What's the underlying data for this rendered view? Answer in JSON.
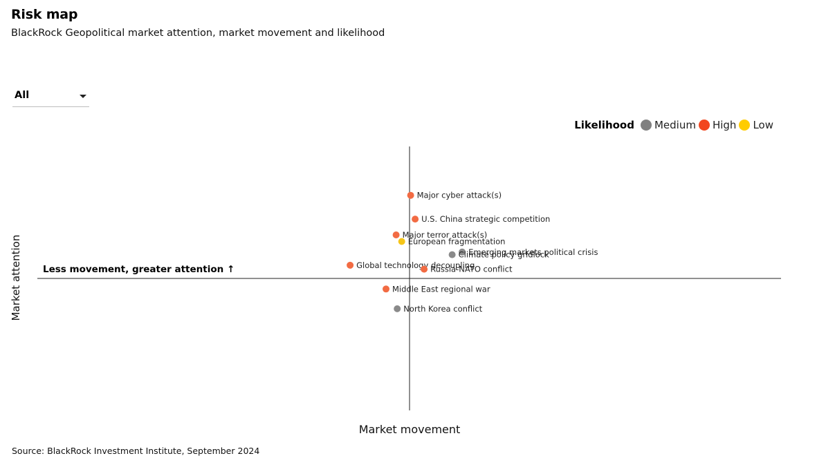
{
  "header": {
    "title": "Risk map",
    "subtitle": "BlackRock Geopolitical market attention, market movement and likelihood"
  },
  "filter": {
    "selected": "All"
  },
  "legend": {
    "title": "Likelihood",
    "items": [
      {
        "label": "Medium",
        "color": "#808080"
      },
      {
        "label": "High",
        "color": "#f2461f"
      },
      {
        "label": "Low",
        "color": "#ffcc00"
      }
    ]
  },
  "quadrant_note": "Less movement, greater attention ↑",
  "source": "Source: BlackRock Investment Institute, September 2024",
  "chart_data": {
    "type": "scatter",
    "xlabel": "Market movement",
    "ylabel": "Market attention",
    "xlim": [
      -3,
      3
    ],
    "ylim": [
      -1.0,
      1.0
    ],
    "point_color": {
      "High": "#f26b43",
      "Medium": "#8a8a8a",
      "Low": "#f5c518"
    },
    "points": [
      {
        "name": "Major cyber attack(s)",
        "x": 0.01,
        "y": 0.63,
        "likelihood": "High"
      },
      {
        "name": "U.S. China strategic competition",
        "x": 0.05,
        "y": 0.45,
        "likelihood": "High"
      },
      {
        "name": "Major terror attack(s)",
        "x": -0.12,
        "y": 0.33,
        "likelihood": "High"
      },
      {
        "name": "European fragmentation",
        "x": -0.07,
        "y": 0.28,
        "likelihood": "Low"
      },
      {
        "name": "Emerging markets political crisis",
        "x": 0.47,
        "y": 0.2,
        "likelihood": "Medium"
      },
      {
        "name": "Climate policy gridlock",
        "x": 0.38,
        "y": 0.18,
        "likelihood": "Medium"
      },
      {
        "name": "Global technology decoupling",
        "x": -0.53,
        "y": 0.1,
        "likelihood": "High"
      },
      {
        "name": "Russia-NATO conflict",
        "x": 0.13,
        "y": 0.07,
        "likelihood": "High"
      },
      {
        "name": "Middle East regional war",
        "x": -0.21,
        "y": -0.08,
        "likelihood": "High"
      },
      {
        "name": "North Korea conflict",
        "x": -0.11,
        "y": -0.23,
        "likelihood": "Medium"
      }
    ]
  }
}
